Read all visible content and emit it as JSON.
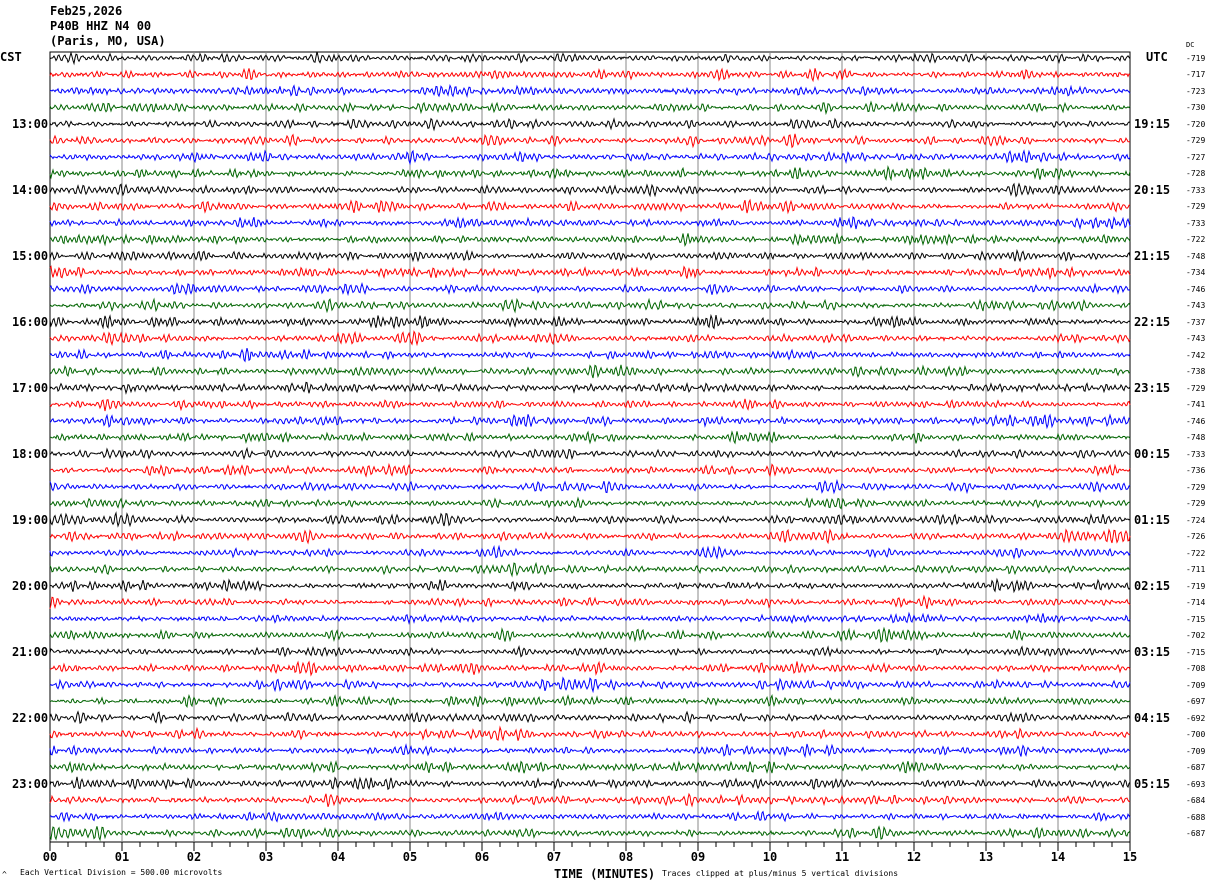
{
  "header": {
    "date": "Feb25,2026",
    "station": "P40B HHZ N4 00",
    "location": "(Paris, MO, USA)"
  },
  "chart_data": {
    "type": "line",
    "title": "",
    "xlabel": "TIME (MINUTES)",
    "xlim": [
      0,
      15
    ],
    "x_ticks": [
      "00",
      "01",
      "02",
      "03",
      "04",
      "05",
      "06",
      "07",
      "08",
      "09",
      "10",
      "11",
      "12",
      "13",
      "14",
      "15"
    ],
    "left_axis_label": "CST",
    "right_axis_label": "UTC",
    "dc_label": "DC",
    "left_hour_labels": [
      "13:00",
      "14:00",
      "15:00",
      "16:00",
      "17:00",
      "18:00",
      "19:00",
      "20:00",
      "21:00",
      "22:00",
      "23:00"
    ],
    "right_hour_labels": [
      "19:15",
      "20:15",
      "21:15",
      "22:15",
      "23:15",
      "00:15",
      "01:15",
      "02:15",
      "03:15",
      "04:15",
      "05:15"
    ],
    "trace_colors": [
      "#000000",
      "#ff0000",
      "#0000ff",
      "#006400"
    ],
    "trace_minutes": 15,
    "trace_count": 48,
    "dc_offsets": [
      -719,
      -717,
      -723,
      -730,
      -720,
      -729,
      -727,
      -728,
      -733,
      -729,
      -733,
      -722,
      -748,
      -734,
      -746,
      -743,
      -737,
      -743,
      -742,
      -738,
      -729,
      -741,
      -746,
      -748,
      -733,
      -736,
      -729,
      -729,
      -724,
      -726,
      -722,
      -711,
      -719,
      -714,
      -715,
      -702,
      -715,
      -708,
      -709,
      -697,
      -692,
      -700,
      -709,
      -687,
      -693,
      -684,
      -688,
      -687
    ]
  },
  "footer": {
    "scale": "Each Vertical Division =  500.00 microvolts",
    "clip": "Traces clipped at plus/minus 5 vertical divisions",
    "corner": "^"
  }
}
